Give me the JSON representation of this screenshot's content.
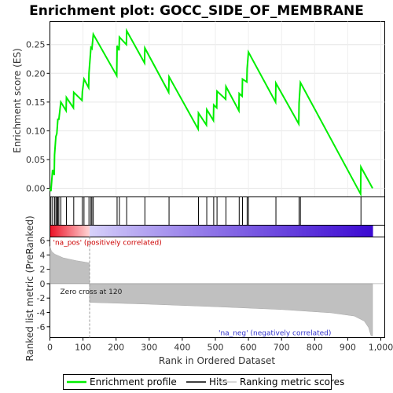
{
  "chart_data": {
    "type": "line",
    "title": "Enrichment plot: GOCC_SIDE_OF_MEMBRANE",
    "xlabel": "Rank in Ordered Dataset",
    "ylabel_top": "Enrichment score (ES)",
    "ylabel_bottom": "Ranked list metric (PreRanked)",
    "x_ticks": [
      0,
      100,
      200,
      300,
      400,
      500,
      600,
      700,
      800,
      900,
      1000
    ],
    "x_tick_labels": [
      "0",
      "100",
      "200",
      "300",
      "400",
      "500",
      "600",
      "700",
      "800",
      "900",
      "1,000"
    ],
    "es_ylim": [
      -0.015,
      0.29
    ],
    "es_ticks": [
      0.0,
      0.05,
      0.1,
      0.15,
      0.2,
      0.25
    ],
    "es_tick_labels": [
      "0.00",
      "0.05",
      "0.10",
      "0.15",
      "0.20",
      "0.25"
    ],
    "metric_ylim": [
      -7.5,
      6.5
    ],
    "metric_ticks": [
      -6,
      -4,
      -2,
      0,
      2,
      4,
      6
    ],
    "metric_tick_labels": [
      "-6",
      "-4",
      "-2",
      "0",
      "2",
      "4",
      "6"
    ],
    "n_ranks": 975,
    "zero_cross_rank": 120,
    "zero_cross_label": "Zero cross at 120",
    "pos_label": "'na_pos' (positively correlated)",
    "neg_label": "'na_neg' (negatively correlated)",
    "colors": {
      "es_line": "#00ee00",
      "hits": "#000000",
      "metric_fill": "#c0c0c0",
      "pos_text": "#cc0000",
      "neg_text": "#3333cc"
    },
    "hits": [
      3,
      8,
      14,
      18,
      21,
      24,
      27,
      33,
      50,
      72,
      98,
      103,
      118,
      124,
      127,
      131,
      203,
      210,
      232,
      287,
      360,
      449,
      474,
      495,
      505,
      532,
      572,
      582,
      596,
      600,
      683,
      753,
      757,
      940
    ],
    "es_points": [
      [
        0,
        0.0
      ],
      [
        3,
        -0.005
      ],
      [
        8,
        0.032
      ],
      [
        13,
        0.023
      ],
      [
        14,
        0.058
      ],
      [
        18,
        0.09
      ],
      [
        21,
        0.095
      ],
      [
        24,
        0.12
      ],
      [
        27,
        0.12
      ],
      [
        33,
        0.15
      ],
      [
        49,
        0.135
      ],
      [
        50,
        0.158
      ],
      [
        71,
        0.14
      ],
      [
        72,
        0.167
      ],
      [
        97,
        0.153
      ],
      [
        98,
        0.168
      ],
      [
        103,
        0.19
      ],
      [
        117,
        0.175
      ],
      [
        118,
        0.2
      ],
      [
        124,
        0.245
      ],
      [
        127,
        0.243
      ],
      [
        131,
        0.268
      ],
      [
        202,
        0.196
      ],
      [
        203,
        0.248
      ],
      [
        209,
        0.24
      ],
      [
        210,
        0.263
      ],
      [
        231,
        0.25
      ],
      [
        232,
        0.274
      ],
      [
        286,
        0.218
      ],
      [
        287,
        0.244
      ],
      [
        359,
        0.167
      ],
      [
        360,
        0.194
      ],
      [
        448,
        0.103
      ],
      [
        449,
        0.131
      ],
      [
        473,
        0.11
      ],
      [
        474,
        0.137
      ],
      [
        494,
        0.118
      ],
      [
        495,
        0.145
      ],
      [
        504,
        0.14
      ],
      [
        505,
        0.169
      ],
      [
        531,
        0.155
      ],
      [
        532,
        0.177
      ],
      [
        571,
        0.135
      ],
      [
        572,
        0.165
      ],
      [
        581,
        0.16
      ],
      [
        582,
        0.19
      ],
      [
        595,
        0.185
      ],
      [
        596,
        0.208
      ],
      [
        600,
        0.237
      ],
      [
        682,
        0.15
      ],
      [
        683,
        0.183
      ],
      [
        752,
        0.112
      ],
      [
        753,
        0.148
      ],
      [
        757,
        0.184
      ],
      [
        939,
        -0.01
      ],
      [
        940,
        0.037
      ],
      [
        975,
        0.0
      ]
    ],
    "metric_profile": [
      [
        0,
        5.2
      ],
      [
        5,
        4.5
      ],
      [
        15,
        4.1
      ],
      [
        40,
        3.6
      ],
      [
        80,
        3.2
      ],
      [
        119,
        2.9
      ],
      [
        120,
        -2.6
      ],
      [
        300,
        -2.85
      ],
      [
        500,
        -3.2
      ],
      [
        700,
        -3.6
      ],
      [
        850,
        -4.05
      ],
      [
        920,
        -4.5
      ],
      [
        950,
        -5.2
      ],
      [
        963,
        -6.1
      ],
      [
        970,
        -7.2
      ],
      [
        975,
        -7.3
      ]
    ],
    "legend": [
      {
        "key": "es",
        "label": "Enrichment profile"
      },
      {
        "key": "hits",
        "label": "Hits"
      },
      {
        "key": "metric",
        "label": "Ranking metric scores"
      }
    ]
  }
}
